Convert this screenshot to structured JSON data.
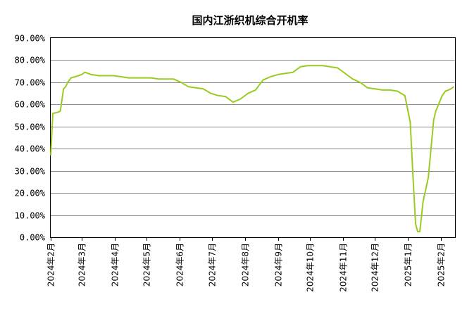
{
  "chart_data": {
    "type": "line",
    "title": "国内江浙织机综合开机率",
    "xlabel": "",
    "ylabel": "",
    "ylim": [
      0,
      90
    ],
    "y_unit": "%",
    "y_ticks": [
      "0.00%",
      "10.00%",
      "20.00%",
      "30.00%",
      "40.00%",
      "50.00%",
      "60.00%",
      "70.00%",
      "80.00%",
      "90.00%"
    ],
    "x_ticks": [
      "2024年2月",
      "2024年3月",
      "2024年4月",
      "2024年5月",
      "2024年6月",
      "2024年7月",
      "2024年8月",
      "2024年9月",
      "2024年10月",
      "2024年11月",
      "2024年12月",
      "2025年1月",
      "2025年2月"
    ],
    "xlim": [
      "2024-02-01",
      "2025-02-14"
    ],
    "grid": "horizontal",
    "line_color": "#99cc22",
    "series": [
      {
        "x": [
          "2024-02-01",
          "2024-02-03",
          "2024-02-04",
          "2024-02-08",
          "2024-02-10",
          "2024-02-13",
          "2024-02-15",
          "2024-02-17",
          "2024-02-20",
          "2024-02-24",
          "2024-03-01",
          "2024-03-04",
          "2024-03-07",
          "2024-03-10",
          "2024-03-17",
          "2024-03-24",
          "2024-03-31",
          "2024-04-07",
          "2024-04-14",
          "2024-04-21",
          "2024-04-28",
          "2024-05-05",
          "2024-05-12",
          "2024-05-19",
          "2024-05-26",
          "2024-06-02",
          "2024-06-09",
          "2024-06-16",
          "2024-06-23",
          "2024-06-30",
          "2024-07-07",
          "2024-07-14",
          "2024-07-21",
          "2024-07-28",
          "2024-08-04",
          "2024-08-11",
          "2024-08-18",
          "2024-08-25",
          "2024-09-01",
          "2024-09-08",
          "2024-09-15",
          "2024-09-22",
          "2024-09-29",
          "2024-10-06",
          "2024-10-13",
          "2024-10-20",
          "2024-10-27",
          "2024-11-03",
          "2024-11-10",
          "2024-11-17",
          "2024-11-24",
          "2024-12-01",
          "2024-12-08",
          "2024-12-15",
          "2024-12-22",
          "2024-12-29",
          "2025-01-03",
          "2025-01-06",
          "2025-01-08",
          "2025-01-10",
          "2025-01-12",
          "2025-01-15",
          "2025-01-20",
          "2025-01-25",
          "2025-01-27",
          "2025-01-30",
          "2025-02-02",
          "2025-02-05",
          "2025-02-08",
          "2025-02-10",
          "2025-02-13"
        ],
        "values": [
          37,
          56,
          56,
          56.5,
          57,
          67,
          68,
          70,
          72,
          72.5,
          73.5,
          74.5,
          74,
          73.5,
          73,
          73,
          73,
          72.5,
          72,
          72,
          72,
          72,
          71.5,
          71.5,
          71.5,
          70,
          68,
          67.5,
          67,
          65,
          64,
          63.5,
          61,
          62.5,
          65,
          66.5,
          71,
          72.5,
          73.5,
          74,
          74.5,
          77,
          77.5,
          77.5,
          77.5,
          77,
          76.5,
          74,
          71.5,
          70,
          67.5,
          67,
          66.5,
          66.5,
          66,
          64,
          52,
          24,
          6,
          2.5,
          2.5,
          16,
          27,
          53,
          57,
          60.5,
          64,
          66,
          66.5,
          67,
          68
        ]
      }
    ]
  }
}
